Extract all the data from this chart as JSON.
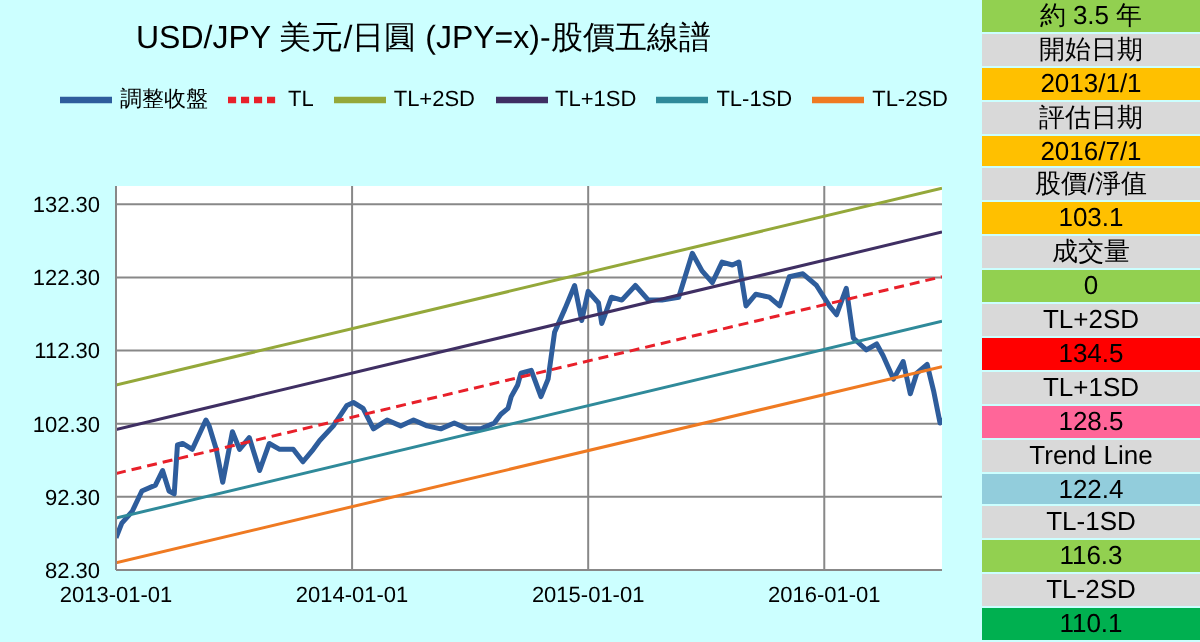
{
  "chart_data": {
    "type": "line",
    "title": "USD/JPY 美元/日圓 (JPY=x)-股價五線譜",
    "legend": "top",
    "grid": true,
    "marker": "none",
    "xlim": [
      "2013-01-01",
      "2016-07-01"
    ],
    "xticks": [
      "2013-01-01",
      "2014-01-01",
      "2015-01-01",
      "2016-01-01"
    ],
    "ylim": [
      82.3,
      134.8
    ],
    "yticks": [
      {
        "value": 82.3,
        "label": "82.30"
      },
      {
        "value": 92.3,
        "label": "92.30"
      },
      {
        "value": 102.3,
        "label": "102.30"
      },
      {
        "value": 112.3,
        "label": "112.30"
      },
      {
        "value": 122.3,
        "label": "122.30"
      },
      {
        "value": 132.3,
        "label": "132.30"
      }
    ],
    "annotations": [
      "約 3.5 年",
      "開始日期",
      "2013/1/1",
      "評估日期",
      "2016/7/1",
      "股價/淨值",
      "103.1",
      "成交量",
      "0",
      "TL+2SD",
      "134.5",
      "TL+1SD",
      "128.5",
      "Trend Line",
      "122.4",
      "TL-1SD",
      "116.3",
      "TL-2SD",
      "110.1"
    ],
    "series": [
      {
        "name": "調整收盤",
        "color": "#2e5d9c",
        "x": [
          "2013-01-01",
          "2013-01-10",
          "2013-01-26",
          "2013-02-10",
          "2013-03-03",
          "2013-03-14",
          "2013-03-24",
          "2013-04-01",
          "2013-04-06",
          "2013-04-14",
          "2013-04-29",
          "2013-05-20",
          "2013-05-25",
          "2013-06-05",
          "2013-06-15",
          "2013-06-30",
          "2013-07-11",
          "2013-07-26",
          "2013-08-11",
          "2013-08-26",
          "2013-09-11",
          "2013-10-02",
          "2013-10-17",
          "2013-11-02",
          "2013-11-12",
          "2013-12-03",
          "2013-12-24",
          "2014-01-03",
          "2014-01-18",
          "2014-02-03",
          "2014-02-24",
          "2014-03-17",
          "2014-04-06",
          "2014-04-27",
          "2014-05-18",
          "2014-06-08",
          "2014-06-28",
          "2014-07-19",
          "2014-08-09",
          "2014-08-19",
          "2014-08-30",
          "2014-09-04",
          "2014-09-14",
          "2014-09-19",
          "2014-10-05",
          "2014-10-20",
          "2014-10-31",
          "2014-11-10",
          "2014-11-26",
          "2014-12-11",
          "2014-12-22",
          "2015-01-01",
          "2015-01-17",
          "2015-01-22",
          "2015-02-06",
          "2015-02-22",
          "2015-03-15",
          "2015-04-04",
          "2015-04-25",
          "2015-05-21",
          "2015-06-11",
          "2015-06-26",
          "2015-07-12",
          "2015-07-27",
          "2015-08-12",
          "2015-08-22",
          "2015-09-02",
          "2015-09-17",
          "2015-10-08",
          "2015-10-24",
          "2015-11-08",
          "2015-11-29",
          "2015-12-20",
          "2016-01-09",
          "2016-01-20",
          "2016-02-04",
          "2016-02-15",
          "2016-02-25",
          "2016-03-06",
          "2016-03-22",
          "2016-04-01",
          "2016-04-17",
          "2016-05-02",
          "2016-05-13",
          "2016-05-23",
          "2016-06-08",
          "2016-06-18",
          "2016-06-28",
          "2016-07-01"
        ],
        "values": [
          86.7,
          88.7,
          90.3,
          93.1,
          93.9,
          95.9,
          93.1,
          92.7,
          99.4,
          99.6,
          98.8,
          102.8,
          102,
          98.8,
          94.3,
          101.2,
          98.8,
          100.4,
          95.9,
          99.6,
          98.8,
          98.8,
          97.1,
          98.8,
          100,
          102,
          104.8,
          105.2,
          104.4,
          101.6,
          102.8,
          102,
          102.8,
          102,
          101.6,
          102.4,
          101.6,
          101.6,
          102.4,
          103.6,
          104.4,
          106,
          107.6,
          109.2,
          109.6,
          106,
          108.4,
          114.8,
          118,
          121.2,
          116.4,
          120.4,
          118.8,
          116,
          119.6,
          119.2,
          121.2,
          119.2,
          119.2,
          119.6,
          125.6,
          123.2,
          121.6,
          124.4,
          124,
          124.4,
          118.4,
          120,
          119.6,
          118.4,
          122.4,
          122.8,
          121.2,
          118.4,
          117.2,
          120.8,
          114,
          113.2,
          112.4,
          113.2,
          111.6,
          108.4,
          110.8,
          106.4,
          109.2,
          110.4,
          106.8,
          102.4,
          103.1
        ]
      },
      {
        "name": "TL",
        "color": "#e8202a",
        "line_style": "dashed",
        "x": [
          "2013-01-01",
          "2016-07-01"
        ],
        "values": [
          95.5,
          122.4
        ]
      },
      {
        "name": "TL+2SD",
        "color": "#94a83a",
        "x": [
          "2013-01-01",
          "2016-07-01"
        ],
        "values": [
          107.6,
          134.5
        ]
      },
      {
        "name": "TL+1SD",
        "color": "#3f2f63",
        "x": [
          "2013-01-01",
          "2016-07-01"
        ],
        "values": [
          101.5,
          128.5
        ]
      },
      {
        "name": "TL-1SD",
        "color": "#2f8a9a",
        "x": [
          "2013-01-01",
          "2016-07-01"
        ],
        "values": [
          89.4,
          116.3
        ]
      },
      {
        "name": "TL-2SD",
        "color": "#ef7a22",
        "x": [
          "2013-01-01",
          "2016-07-01"
        ],
        "values": [
          83.3,
          110.1
        ]
      }
    ]
  }
}
